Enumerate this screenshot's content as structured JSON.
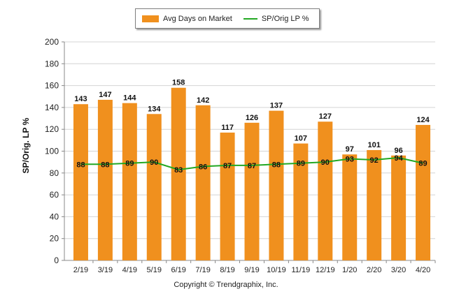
{
  "chart_data": {
    "type": "bar",
    "categories": [
      "2/19",
      "3/19",
      "4/19",
      "5/19",
      "6/19",
      "7/19",
      "8/19",
      "9/19",
      "10/19",
      "11/19",
      "12/19",
      "1/20",
      "2/20",
      "3/20",
      "4/20"
    ],
    "series": [
      {
        "name": "Avg Days on Market",
        "type": "bar",
        "color": "#f0901e",
        "values": [
          143,
          147,
          144,
          134,
          158,
          142,
          117,
          126,
          137,
          107,
          127,
          97,
          101,
          96,
          124
        ]
      },
      {
        "name": "SP/Orig LP %",
        "type": "line",
        "color": "#22a822",
        "values": [
          88,
          88,
          89,
          90,
          83,
          86,
          87,
          87,
          88,
          89,
          90,
          93,
          92,
          94,
          89
        ]
      }
    ],
    "ylabel": "SP/Orig. LP %",
    "ylim": [
      0,
      200
    ],
    "yticks": [
      0,
      20,
      40,
      60,
      80,
      100,
      120,
      140,
      160,
      180,
      200
    ],
    "grid": true,
    "legend_position": "top"
  },
  "footer": "Copyright © Trendgraphix, Inc."
}
